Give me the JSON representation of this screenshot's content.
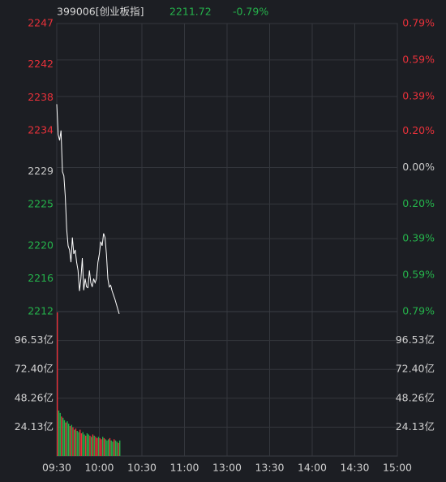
{
  "chart_data": {
    "type": "line",
    "title": "399006[创业板指]",
    "last_price": 2211.72,
    "change": "-0.79%",
    "up_color": "#e8313a",
    "down_color": "#25b34b",
    "flat_color": "#c8c8c8",
    "line_color": "#ffffff",
    "grid": true,
    "xlim": [
      0,
      240
    ],
    "xticks": [
      {
        "value": 0,
        "label": "09:30"
      },
      {
        "value": 30,
        "label": "10:00"
      },
      {
        "value": 60,
        "label": "10:30"
      },
      {
        "value": 90,
        "label": "11:00"
      },
      {
        "value": 120,
        "label": "13:00"
      },
      {
        "value": 150,
        "label": "13:30"
      },
      {
        "value": 180,
        "label": "14:00"
      },
      {
        "value": 210,
        "label": "14:30"
      },
      {
        "value": 240,
        "label": "15:00"
      }
    ],
    "ylim": [
      2212,
      2247
    ],
    "yticks": [
      2247,
      2242,
      2238,
      2234,
      2229,
      2225,
      2220,
      2216,
      2212
    ],
    "y2lim": [
      -0.79,
      0.79
    ],
    "y2ticks": [
      {
        "value": 0.79,
        "label": "0.79%"
      },
      {
        "value": 0.59,
        "label": "0.59%"
      },
      {
        "value": 0.39,
        "label": "0.39%"
      },
      {
        "value": 0.2,
        "label": "0.20%"
      },
      {
        "value": 0,
        "label": "0.00%"
      },
      {
        "value": -0.2,
        "label": "0.20%"
      },
      {
        "value": -0.39,
        "label": "0.39%"
      },
      {
        "value": -0.59,
        "label": "0.59%"
      },
      {
        "value": -0.79,
        "label": "0.79%"
      }
    ],
    "x": [
      0,
      1,
      2,
      3,
      4,
      5,
      6,
      7,
      8,
      9,
      10,
      11,
      12,
      13,
      14,
      15,
      16,
      17,
      18,
      19,
      20,
      21,
      22,
      23,
      24,
      25,
      26,
      27,
      28,
      29,
      30,
      31,
      32,
      33,
      34,
      35,
      36,
      37,
      38,
      39,
      40,
      41,
      42,
      43,
      44
    ],
    "series": [
      {
        "values": [
          2237.2,
          2233.5,
          2232.8,
          2234,
          2229,
          2228.5,
          2226,
          2222,
          2220,
          2219.5,
          2218,
          2221,
          2219,
          2219.5,
          2218,
          2217,
          2214.5,
          2216,
          2218.5,
          2214.6,
          2216,
          2215,
          2214.9,
          2217,
          2215.5,
          2215,
          2216,
          2215.5,
          2216,
          2218,
          2219,
          2220.5,
          2220,
          2221.5,
          2221,
          2219,
          2216,
          2215,
          2215.2,
          2214.5,
          2214,
          2213.5,
          2212.9,
          2212.3,
          2211.72
        ]
      }
    ],
    "volume": {
      "ylim": [
        0,
        120.66
      ],
      "yticks": [
        {
          "value": 96.53,
          "label": "96.53亿"
        },
        {
          "value": 72.4,
          "label": "72.40亿"
        },
        {
          "value": 48.26,
          "label": "48.26亿"
        },
        {
          "value": 24.13,
          "label": "24.13亿"
        }
      ],
      "values": [
        120,
        38,
        36,
        33,
        32,
        30,
        28,
        29,
        27,
        25,
        26,
        24,
        22,
        23,
        21,
        20,
        22,
        19,
        20,
        18,
        17,
        19,
        18,
        17,
        16,
        18,
        17,
        16,
        15,
        16,
        15,
        14,
        16,
        15,
        14,
        13,
        14,
        15,
        13,
        12,
        14,
        13,
        12,
        11,
        13
      ],
      "up": [
        true,
        false,
        false,
        true,
        false,
        false,
        true,
        false,
        false,
        true,
        false,
        true,
        false,
        true,
        false,
        false,
        true,
        true,
        false,
        false,
        true,
        false,
        false,
        true,
        false,
        true,
        false,
        true,
        true,
        false,
        true,
        true,
        false,
        true,
        false,
        false,
        false,
        true,
        false,
        false,
        true,
        false,
        false,
        true,
        false
      ]
    }
  }
}
